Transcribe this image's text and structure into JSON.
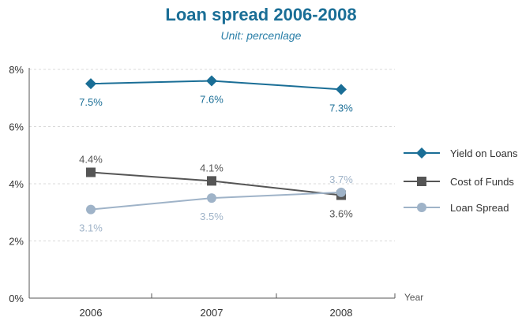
{
  "chart_data": {
    "type": "line",
    "title": "Loan spread 2006-2008",
    "subtitle": "Unit: percenlage",
    "xlabel": "Year",
    "ylabel": "",
    "categories": [
      "2006",
      "2007",
      "2008"
    ],
    "ylim": [
      0,
      8
    ],
    "yticks": [
      "0%",
      "2%",
      "4%",
      "6%",
      "8%"
    ],
    "grid": true,
    "legend_position": "right",
    "series": [
      {
        "name": "Yield on Loans",
        "values": [
          7.5,
          7.6,
          7.3
        ],
        "labels": [
          "7.5%",
          "7.6%",
          "7.3%"
        ],
        "color": "#1a6e96",
        "marker": "diamond"
      },
      {
        "name": "Cost of Funds",
        "values": [
          4.4,
          4.1,
          3.6
        ],
        "labels": [
          "4.4%",
          "4.1%",
          "3.6%"
        ],
        "color": "#555555",
        "marker": "square"
      },
      {
        "name": "Loan Spread",
        "values": [
          3.1,
          3.5,
          3.7
        ],
        "labels": [
          "3.1%",
          "3.5%",
          "3.7%"
        ],
        "color": "#9fb3c8",
        "marker": "circle"
      }
    ]
  }
}
